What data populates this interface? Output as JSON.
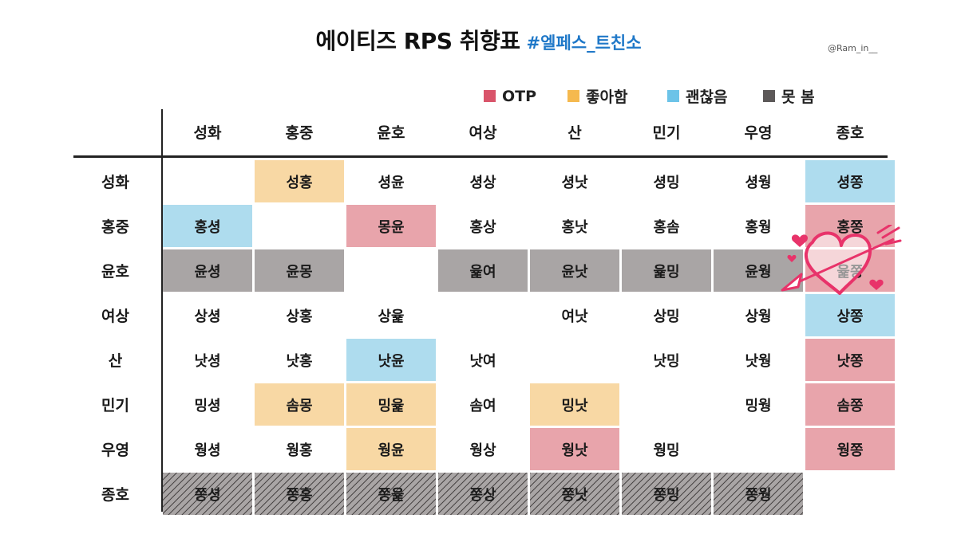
{
  "header": {
    "title": "에이티즈 RPS 취향표",
    "hashtag": "#엘페스_트친소",
    "credit": "@Ram_in__"
  },
  "legend": {
    "otp": {
      "label": "OTP",
      "color": "#d9546a"
    },
    "like": {
      "label": "좋아함",
      "color": "#f5b94e"
    },
    "ok": {
      "label": "괜찮음",
      "color": "#6cc3e8"
    },
    "not": {
      "label": "못 봄",
      "color": "#5c5858"
    }
  },
  "chart_data": {
    "type": "table",
    "columns": [
      "성화",
      "홍중",
      "윤호",
      "여상",
      "산",
      "민기",
      "우영",
      "종호"
    ],
    "rows": [
      {
        "label": "성화",
        "cells": [
          {
            "text": "",
            "level": "none"
          },
          {
            "text": "성홍",
            "level": "like"
          },
          {
            "text": "셩윤",
            "level": "none"
          },
          {
            "text": "셩상",
            "level": "none"
          },
          {
            "text": "셩낫",
            "level": "none"
          },
          {
            "text": "셩밍",
            "level": "none"
          },
          {
            "text": "셩웡",
            "level": "none"
          },
          {
            "text": "셩쫑",
            "level": "ok"
          }
        ]
      },
      {
        "label": "홍중",
        "cells": [
          {
            "text": "홍셩",
            "level": "ok"
          },
          {
            "text": "",
            "level": "none"
          },
          {
            "text": "몽윤",
            "level": "otp"
          },
          {
            "text": "홍상",
            "level": "none"
          },
          {
            "text": "홍낫",
            "level": "none"
          },
          {
            "text": "홍솜",
            "level": "none"
          },
          {
            "text": "홍웡",
            "level": "none"
          },
          {
            "text": "홍쫑",
            "level": "otp"
          }
        ]
      },
      {
        "label": "윤호",
        "cells": [
          {
            "text": "윤셩",
            "level": "not"
          },
          {
            "text": "윤몽",
            "level": "not"
          },
          {
            "text": "",
            "level": "none"
          },
          {
            "text": "윭여",
            "level": "not"
          },
          {
            "text": "윤낫",
            "level": "not"
          },
          {
            "text": "윭밍",
            "level": "not"
          },
          {
            "text": "윤웡",
            "level": "not"
          },
          {
            "text": "윭쫑",
            "level": "otp"
          }
        ]
      },
      {
        "label": "여상",
        "cells": [
          {
            "text": "상셩",
            "level": "none"
          },
          {
            "text": "상홍",
            "level": "none"
          },
          {
            "text": "상윭",
            "level": "none"
          },
          {
            "text": "",
            "level": "none"
          },
          {
            "text": "여낫",
            "level": "none"
          },
          {
            "text": "상밍",
            "level": "none"
          },
          {
            "text": "상웡",
            "level": "none"
          },
          {
            "text": "상쫑",
            "level": "ok"
          }
        ]
      },
      {
        "label": "산",
        "cells": [
          {
            "text": "낫셩",
            "level": "none"
          },
          {
            "text": "낫홍",
            "level": "none"
          },
          {
            "text": "낫윤",
            "level": "ok"
          },
          {
            "text": "낫여",
            "level": "none"
          },
          {
            "text": "",
            "level": "none"
          },
          {
            "text": "낫밍",
            "level": "none"
          },
          {
            "text": "낫웡",
            "level": "none"
          },
          {
            "text": "낫쫑",
            "level": "otp"
          }
        ]
      },
      {
        "label": "민기",
        "cells": [
          {
            "text": "밍셩",
            "level": "none"
          },
          {
            "text": "솜몽",
            "level": "like"
          },
          {
            "text": "밍윭",
            "level": "like"
          },
          {
            "text": "솜여",
            "level": "none"
          },
          {
            "text": "밍낫",
            "level": "like"
          },
          {
            "text": "",
            "level": "none"
          },
          {
            "text": "밍웡",
            "level": "none"
          },
          {
            "text": "솜쫑",
            "level": "otp"
          }
        ]
      },
      {
        "label": "우영",
        "cells": [
          {
            "text": "웡셩",
            "level": "none"
          },
          {
            "text": "웡홍",
            "level": "none"
          },
          {
            "text": "웡윤",
            "level": "like"
          },
          {
            "text": "웡상",
            "level": "none"
          },
          {
            "text": "웡낫",
            "level": "otp"
          },
          {
            "text": "웡밍",
            "level": "none"
          },
          {
            "text": "",
            "level": "none"
          },
          {
            "text": "웡쫑",
            "level": "otp"
          }
        ]
      },
      {
        "label": "종호",
        "cells": [
          {
            "text": "쫑셩",
            "level": "not-hatched"
          },
          {
            "text": "쫑홍",
            "level": "not-hatched"
          },
          {
            "text": "쫑윭",
            "level": "not-hatched"
          },
          {
            "text": "쫑상",
            "level": "not-hatched"
          },
          {
            "text": "쫑낫",
            "level": "not-hatched"
          },
          {
            "text": "쫑밍",
            "level": "not-hatched"
          },
          {
            "text": "쫑웡",
            "level": "not-hatched"
          },
          {
            "text": "",
            "level": "none"
          }
        ]
      }
    ],
    "colors": {
      "otp_cell": "#e8a4ab",
      "like_cell": "#f8d8a4",
      "ok_cell": "#aedcee",
      "not_cell": "#a9a5a5"
    },
    "highlight": {
      "row": "윤호",
      "column": "종호",
      "decoration": "heart-with-arrow"
    }
  }
}
